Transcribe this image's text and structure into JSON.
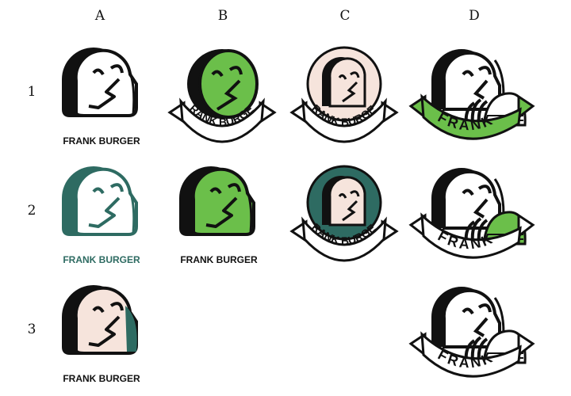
{
  "columns": [
    "A",
    "B",
    "C",
    "D"
  ],
  "rows": [
    "1",
    "2",
    "3"
  ],
  "brand": {
    "full_name": "FRANK BURGER",
    "short_name": "FRANK"
  },
  "palette": {
    "black": "#111111",
    "white": "#ffffff",
    "green": "#6bbf4a",
    "teal": "#2e6b62",
    "blush": "#f6e4dc"
  },
  "variants": [
    {
      "cell": "A1",
      "style": "square-head",
      "face": "white",
      "shadow": "black",
      "wordmark": "FRANK BURGER",
      "wordmark_color": "black"
    },
    {
      "cell": "A2",
      "style": "square-head",
      "face": "white",
      "shadow": "teal",
      "wordmark": "FRANK BURGER",
      "wordmark_color": "teal"
    },
    {
      "cell": "A3",
      "style": "square-head",
      "face": "blush",
      "shadow": "black",
      "wordmark": "FRANK BURGER",
      "wordmark_color": "black"
    },
    {
      "cell": "B1",
      "style": "round-badge-banner",
      "face": "green",
      "wordmark": "FRANK BURGER"
    },
    {
      "cell": "B2",
      "style": "square-head",
      "face": "green",
      "wordmark": "FRANK BURGER",
      "wordmark_color": "black"
    },
    {
      "cell": "C1",
      "style": "ring-badge-banner",
      "face": "blush",
      "ring": "blush",
      "wordmark": "FRANK BURGER"
    },
    {
      "cell": "C2",
      "style": "ring-badge-banner",
      "face": "blush",
      "ring": "teal",
      "wordmark": "FRANK BURGER"
    },
    {
      "cell": "D1",
      "style": "burger-banner",
      "banner": "green",
      "wordmark": "FRANK"
    },
    {
      "cell": "D2",
      "style": "burger-banner",
      "banner": "white",
      "patty": "green",
      "wordmark": "FRANK"
    },
    {
      "cell": "D3",
      "style": "burger-banner",
      "banner": "white",
      "patty": "white",
      "wordmark": "FRANK"
    }
  ]
}
